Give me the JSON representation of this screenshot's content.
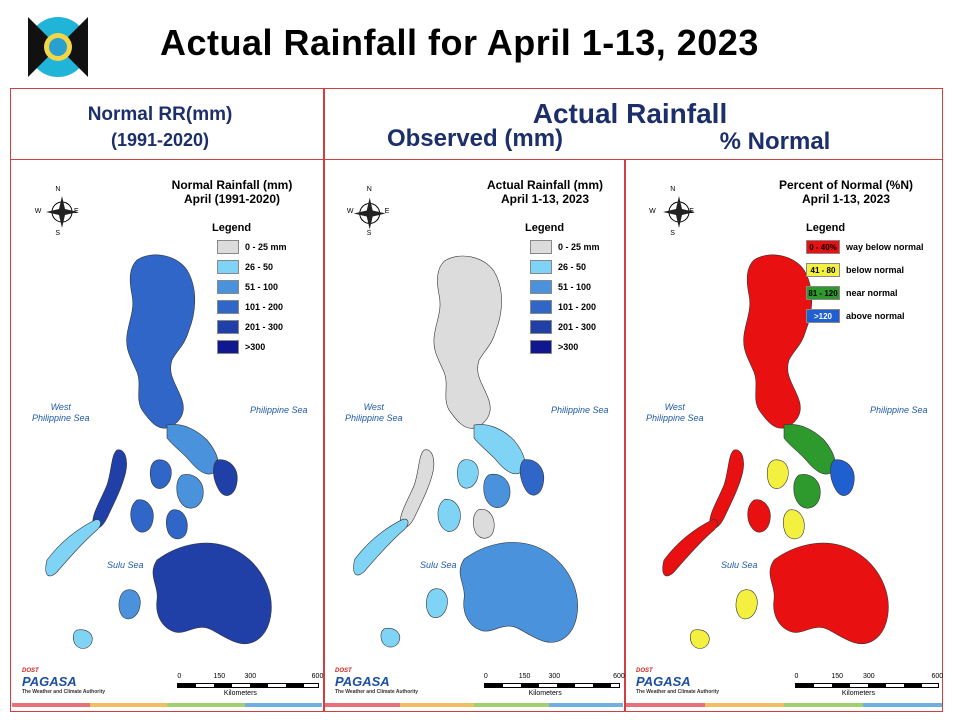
{
  "title": "Actual Rainfall for April 1-13, 2023",
  "headers": {
    "left_line1": "Normal RR(mm)",
    "left_line2": "(1991-2020)",
    "actual": "Actual Rainfall",
    "observed": "Observed (mm)",
    "percent": "% Normal"
  },
  "maps": [
    {
      "title_line1": "Normal Rainfall (mm)",
      "title_line2": "April (1991-2020)",
      "legend_title": "Legend",
      "legend": [
        {
          "label": "0 - 25 mm",
          "color": "#dcdcdc"
        },
        {
          "label": "26 - 50",
          "color": "#7fd3f4"
        },
        {
          "label": "51 - 100",
          "color": "#4a93dc"
        },
        {
          "label": "101 - 200",
          "color": "#2f66c8"
        },
        {
          "label": "201 - 300",
          "color": "#2040a8"
        },
        {
          "label": ">300",
          "color": "#101890"
        }
      ]
    },
    {
      "title_line1": "Actual Rainfall (mm)",
      "title_line2": "April 1-13, 2023",
      "legend_title": "Legend",
      "legend": [
        {
          "label": "0 - 25 mm",
          "color": "#dcdcdc"
        },
        {
          "label": "26 - 50",
          "color": "#7fd3f4"
        },
        {
          "label": "51 - 100",
          "color": "#4a93dc"
        },
        {
          "label": "101 - 200",
          "color": "#2f66c8"
        },
        {
          "label": "201 - 300",
          "color": "#2040a8"
        },
        {
          "label": ">300",
          "color": "#101890"
        }
      ]
    },
    {
      "title_line1": "Percent of Normal (%N)",
      "title_line2": "April 1-13, 2023",
      "legend_title": "Legend",
      "legend": [
        {
          "swatch": "0 - 40%",
          "label": "way below normal",
          "color": "#e81010"
        },
        {
          "swatch": "41 - 80",
          "label": "below normal",
          "color": "#f4f040"
        },
        {
          "swatch": "81 - 120",
          "label": "near normal",
          "color": "#2e9a2e"
        },
        {
          "swatch": ">120",
          "label": "above normal",
          "color": "#1f5fd0"
        }
      ]
    }
  ],
  "sea_labels": {
    "west": "West\nPhilippine Sea",
    "east": "Philippine Sea",
    "sulu": "Sulu Sea"
  },
  "scale": {
    "ticks": [
      "0",
      "150",
      "300",
      "600"
    ],
    "unit": "Kilometers"
  },
  "brand": {
    "name": "PAGASA",
    "prefix": "DOST",
    "tagline": "The Weather and Climate Authority"
  },
  "compass": {
    "n": "N",
    "s": "S",
    "e": "E",
    "w": "W"
  }
}
